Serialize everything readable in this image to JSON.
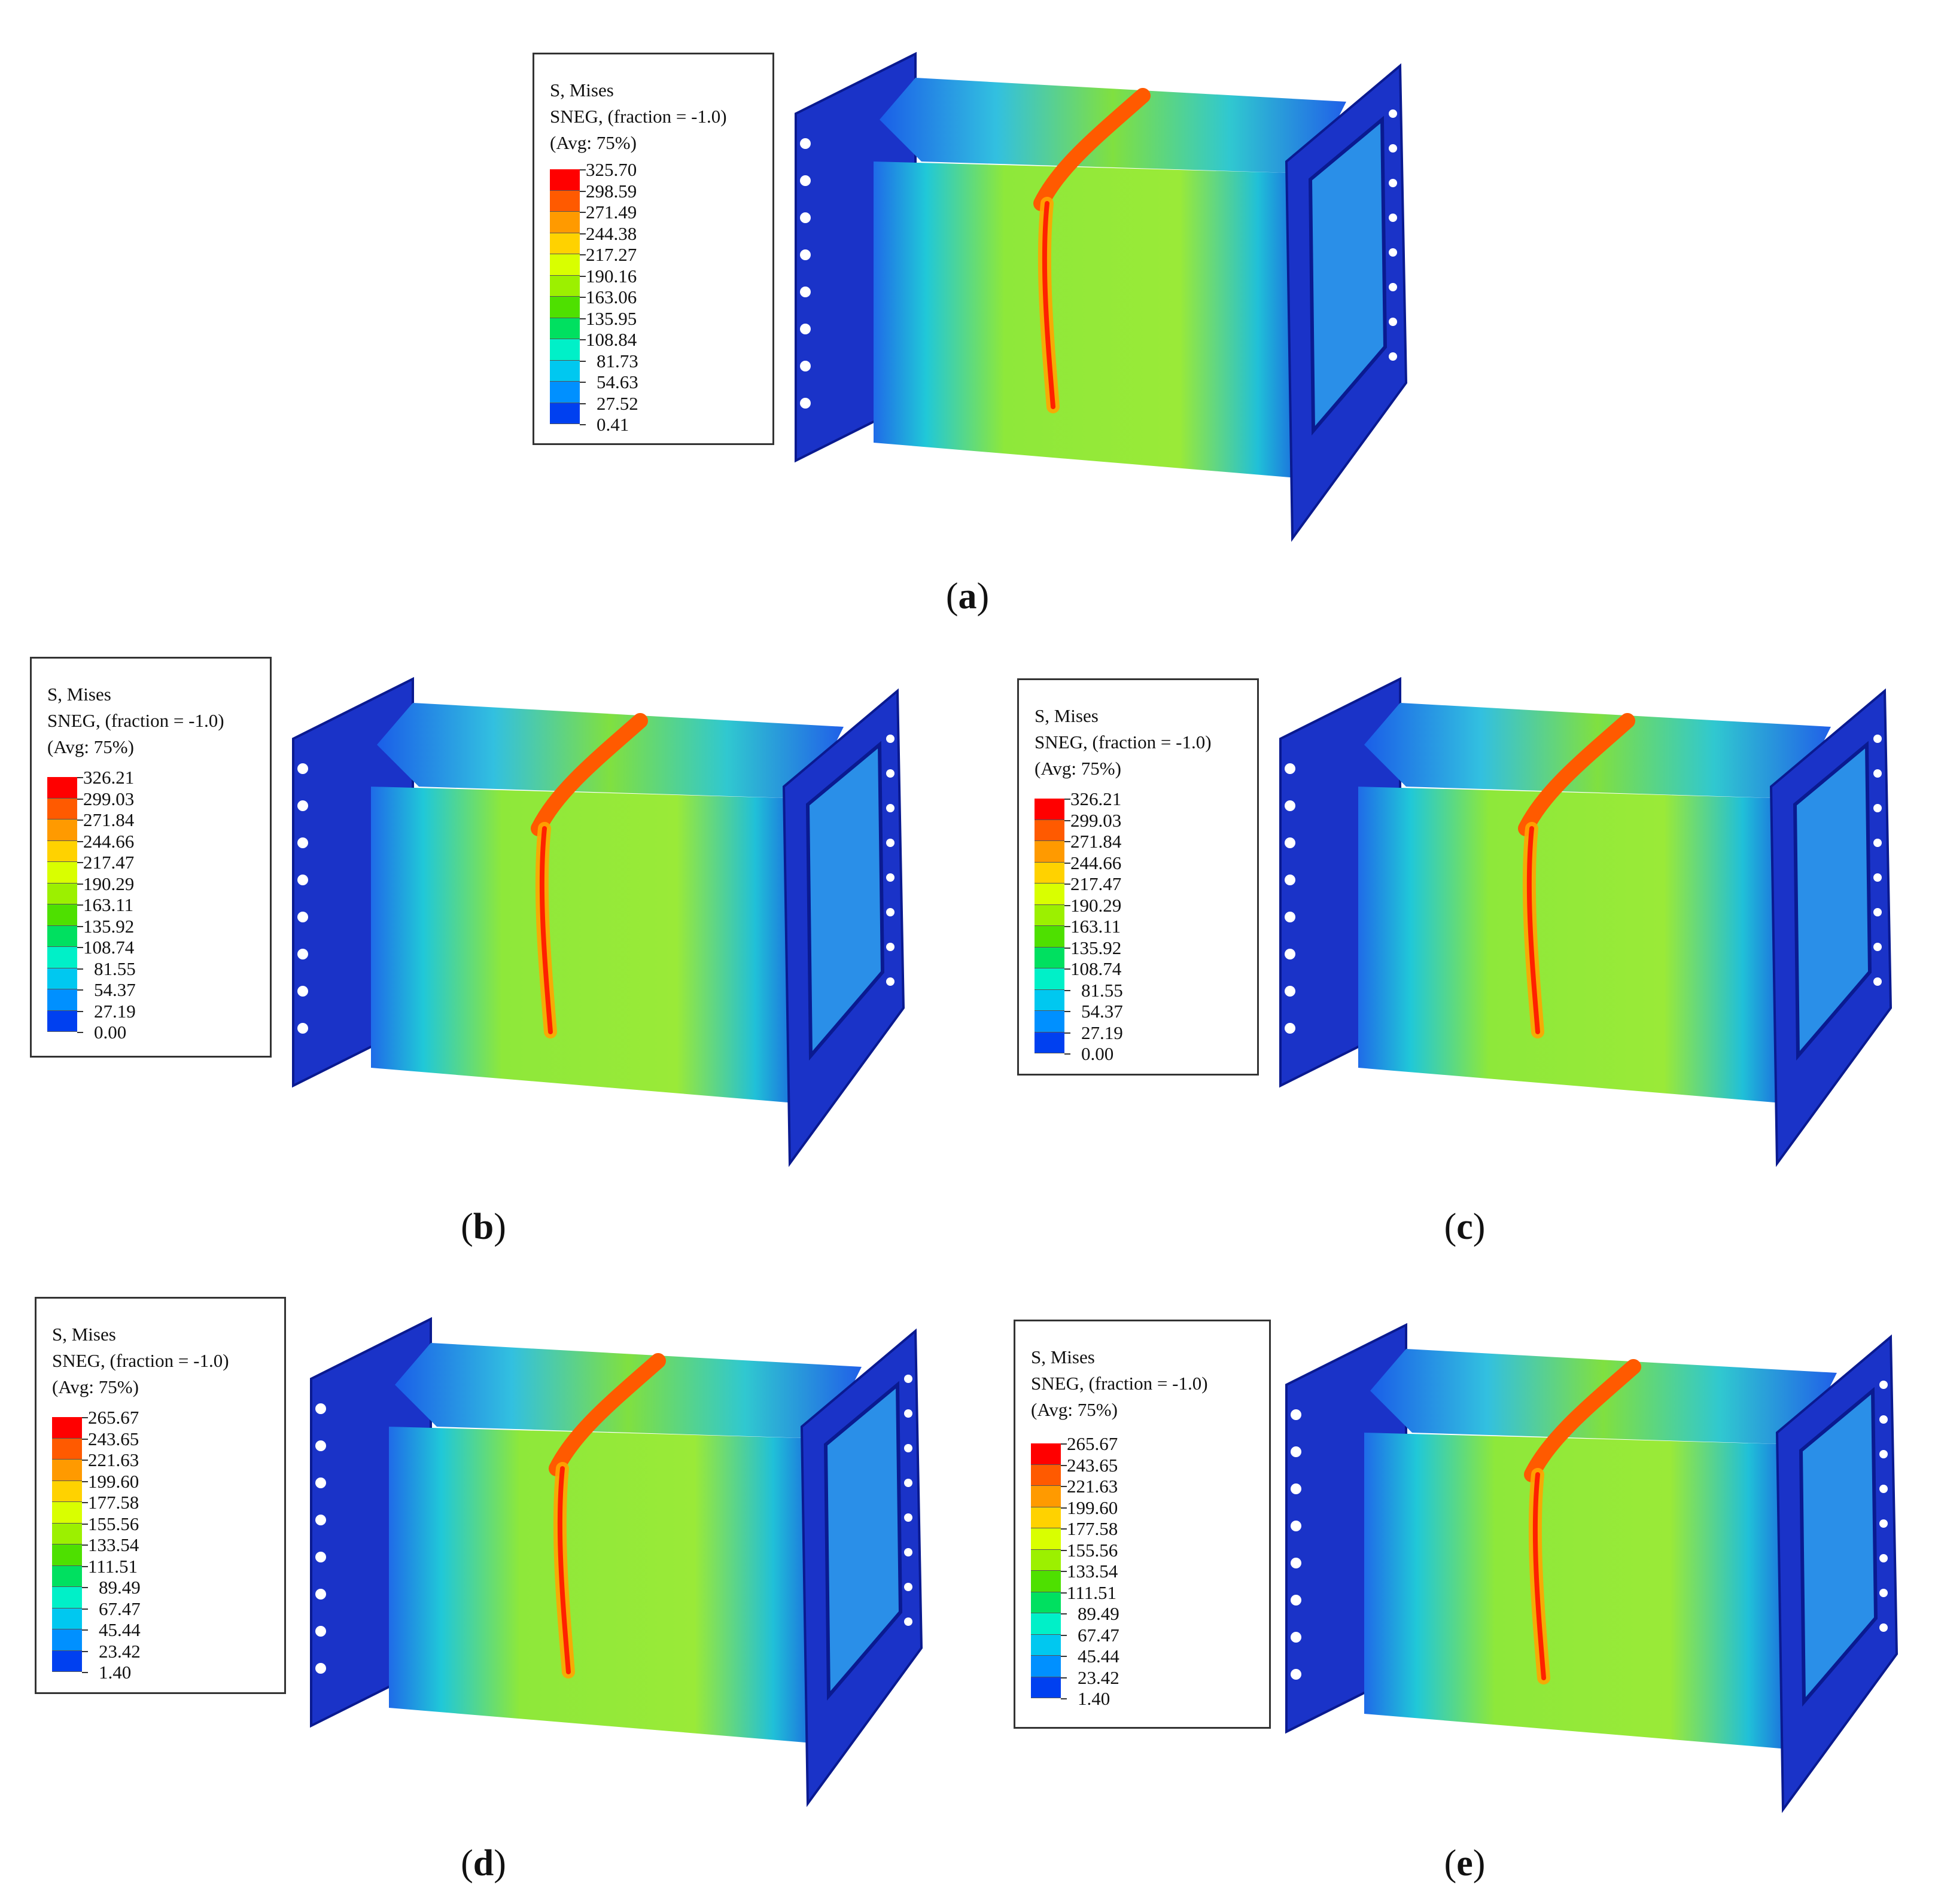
{
  "panels": [
    {
      "caption_letter": "a",
      "legend": {
        "title_line1": "S, Mises",
        "title_line2": "SNEG, (fraction = -1.0)",
        "title_line3": "(Avg: 75%)",
        "values": [
          "325.70",
          "298.59",
          "271.49",
          "244.38",
          "217.27",
          "190.16",
          "163.06",
          "135.95",
          "108.84",
          "81.73",
          "54.63",
          "27.52",
          "0.41"
        ]
      }
    },
    {
      "caption_letter": "b",
      "legend": {
        "title_line1": "S, Mises",
        "title_line2": "SNEG, (fraction = -1.0)",
        "title_line3": "(Avg: 75%)",
        "values": [
          "326.21",
          "299.03",
          "271.84",
          "244.66",
          "217.47",
          "190.29",
          "163.11",
          "135.92",
          "108.74",
          "81.55",
          "54.37",
          "27.19",
          "0.00"
        ]
      }
    },
    {
      "caption_letter": "c",
      "legend": {
        "title_line1": "S, Mises",
        "title_line2": "SNEG, (fraction = -1.0)",
        "title_line3": "(Avg: 75%)",
        "values": [
          "326.21",
          "299.03",
          "271.84",
          "244.66",
          "217.47",
          "190.29",
          "163.11",
          "135.92",
          "108.74",
          "81.55",
          "54.37",
          "27.19",
          "0.00"
        ]
      }
    },
    {
      "caption_letter": "d",
      "legend": {
        "title_line1": "S, Mises",
        "title_line2": "SNEG, (fraction = -1.0)",
        "title_line3": "(Avg: 75%)",
        "values": [
          "265.67",
          "243.65",
          "221.63",
          "199.60",
          "177.58",
          "155.56",
          "133.54",
          "111.51",
          "89.49",
          "67.47",
          "45.44",
          "23.42",
          "1.40"
        ]
      }
    },
    {
      "caption_letter": "e",
      "legend": {
        "title_line1": "S, Mises",
        "title_line2": "SNEG, (fraction = -1.0)",
        "title_line3": "(Avg: 75%)",
        "values": [
          "265.67",
          "243.65",
          "221.63",
          "199.60",
          "177.58",
          "155.56",
          "133.54",
          "111.51",
          "89.49",
          "67.47",
          "45.44",
          "23.42",
          "1.40"
        ]
      }
    }
  ],
  "colors": {
    "contour_scale": [
      "#ff0000",
      "#ff5a00",
      "#ff9a00",
      "#ffd200",
      "#d9ff00",
      "#9cf000",
      "#4ee000",
      "#00e060",
      "#00f0c8",
      "#00c8f0",
      "#0090ff",
      "#0040f0",
      "#0000d8"
    ],
    "plate_blue": "#1a33c8",
    "frame_dark": "#0a1a90",
    "body_green": "#8ee83a"
  }
}
